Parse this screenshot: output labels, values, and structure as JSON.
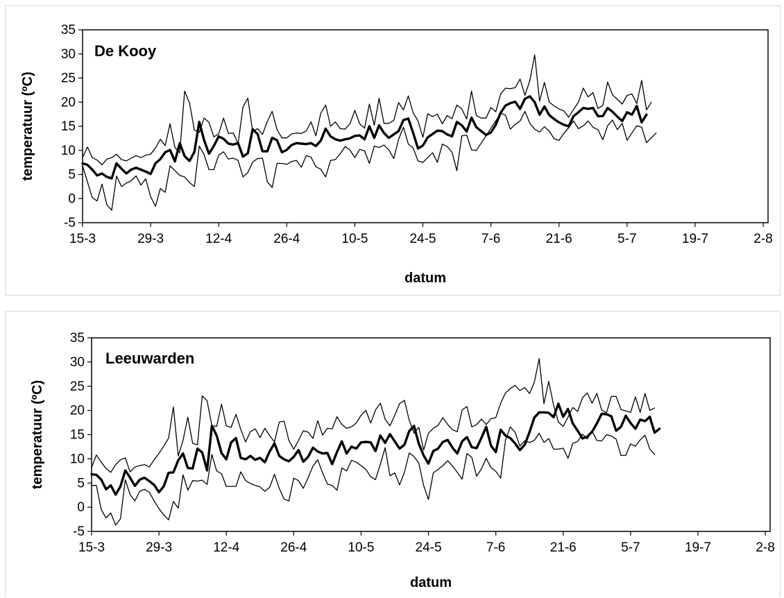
{
  "chart_data": [
    {
      "type": "line",
      "title": "De Kooy",
      "xlabel": "datum",
      "ylabel": "temperatuur (ºC)",
      "ylim": [
        -5,
        35
      ],
      "yticks": [
        35,
        30,
        25,
        20,
        15,
        10,
        5,
        0,
        -5
      ],
      "xlim": [
        "15-3",
        "3-8"
      ],
      "xticks": [
        "15-3",
        "29-3",
        "12-4",
        "26-4",
        "10-5",
        "24-5",
        "7-6",
        "21-6",
        "5-7",
        "19-7",
        "2-8"
      ],
      "grid": false,
      "legend": "none",
      "series": [
        {
          "role": "max",
          "stroke": "#000000",
          "width": 1.3,
          "values": [
            8.5,
            10.7,
            8.5,
            8,
            7,
            8.2,
            8.5,
            9.2,
            8.1,
            7.8,
            8.4,
            8.9,
            8.5,
            9,
            9.2,
            10.5,
            12.3,
            11,
            15.5,
            10.6,
            9.5,
            22.3,
            19.8,
            14.2,
            13.7,
            16.7,
            15.8,
            12.8,
            13.4,
            16.7,
            13.5,
            13.6,
            11.4,
            19,
            20.8,
            13.9,
            14.5,
            13.3,
            16,
            18.1,
            14.3,
            12.6,
            12.6,
            13.4,
            13.6,
            13.5,
            14,
            15.9,
            13,
            17.7,
            19.4,
            15,
            15.9,
            14.5,
            14.4,
            15.5,
            18.3,
            15.5,
            14.6,
            19.6,
            15.2,
            20.8,
            15.6,
            15.6,
            16.2,
            19.9,
            18.4,
            21.3,
            17.8,
            16.1,
            12.7,
            17.6,
            17,
            17.5,
            15.5,
            17.2,
            16.6,
            19.4,
            18.6,
            16.5,
            22.3,
            17.2,
            16.7,
            16.7,
            18.9,
            18,
            21.7,
            22.9,
            22.8,
            23,
            24.8,
            21.4,
            24.5,
            29.8,
            20.2,
            24.1,
            20,
            19.2,
            18.6,
            18.2,
            16.9,
            18.5,
            20,
            22.9,
            21.1,
            22,
            18.7,
            19.3,
            24.2,
            21.5,
            20.6,
            19.6,
            21.4,
            21.7,
            19.7,
            24.5,
            18.4,
            20
          ]
        },
        {
          "role": "mean",
          "stroke": "#000000",
          "width": 3.4,
          "values": [
            7.3,
            7,
            6,
            4.8,
            5.2,
            4.5,
            4.2,
            7.3,
            6.2,
            5.2,
            6,
            6.4,
            6,
            5.6,
            5.1,
            7.3,
            8.2,
            9.6,
            10.1,
            7.7,
            11.5,
            8.8,
            7.8,
            9.7,
            15.9,
            12.1,
            9.3,
            10.9,
            12.9,
            12.4,
            11.4,
            11.2,
            11.5,
            8.7,
            9.4,
            14.4,
            13.4,
            9.8,
            9.8,
            12.6,
            12.1,
            9.6,
            10.1,
            11.1,
            11.5,
            11.4,
            11.3,
            11.5,
            10.9,
            12,
            14.5,
            12.9,
            12.3,
            12,
            12.3,
            12.5,
            13,
            13.1,
            12.3,
            15,
            12.6,
            15.2,
            13.6,
            12.6,
            13.3,
            14,
            16.3,
            16.6,
            13.6,
            10.4,
            11,
            12.7,
            13.4,
            14.1,
            14,
            13.3,
            12.9,
            15.9,
            15.2,
            13.9,
            16.8,
            14.8,
            14,
            13.2,
            13.7,
            15.3,
            17.8,
            19.3,
            19.8,
            20.1,
            18.6,
            20.7,
            21.2,
            20,
            17.4,
            19.1,
            17.3,
            16.5,
            15.8,
            15.3,
            15,
            17.1,
            17.9,
            18.8,
            18.6,
            18.8,
            17.1,
            17.1,
            18.8,
            18,
            17,
            16.1,
            17.9,
            17.4,
            19.2,
            15.8,
            17.4
          ]
        },
        {
          "role": "min",
          "stroke": "#000000",
          "width": 1.3,
          "values": [
            6.8,
            3.5,
            0.2,
            -0.5,
            3,
            -1.3,
            -2.4,
            4.7,
            2.5,
            3.2,
            3.7,
            4.7,
            2.8,
            4.1,
            0.4,
            -1.6,
            2.1,
            1.3,
            6.8,
            5.8,
            4.8,
            4.5,
            3.3,
            2.5,
            10.9,
            9.1,
            6,
            6,
            9,
            9.7,
            8.2,
            8.4,
            7.9,
            4.5,
            5.4,
            7.6,
            8.3,
            8.4,
            3.5,
            2.3,
            7.3,
            7.3,
            7.1,
            7.7,
            7.9,
            6.5,
            8.9,
            8.6,
            6.6,
            6.1,
            4.5,
            7.9,
            8.1,
            9.3,
            10.8,
            10.1,
            8.5,
            10.2,
            9.9,
            7.3,
            10.9,
            10.6,
            11.1,
            10.1,
            8.3,
            12.3,
            14.8,
            11.3,
            10.5,
            7.8,
            7.5,
            8.5,
            9.5,
            7.5,
            11.3,
            10.8,
            9.6,
            5.8,
            13,
            13.2,
            10.1,
            10,
            11.5,
            13,
            14.6,
            16.1,
            17.7,
            17.3,
            14.4,
            15.4,
            16.1,
            18.1,
            15.6,
            14.4,
            13.8,
            14.9,
            14,
            12.4,
            12.1,
            13.5,
            14.7,
            16.1,
            14.5,
            15.1,
            16.1,
            14.8,
            14.3,
            12.2,
            15.1,
            16.3,
            14.3,
            15.6,
            12.1,
            13.6,
            15.1,
            14.8,
            11.6,
            12.6,
            13.6
          ]
        }
      ]
    },
    {
      "type": "line",
      "title": "Leeuwarden",
      "xlabel": "datum",
      "ylabel": "temperatuur (ºC)",
      "ylim": [
        -5,
        35
      ],
      "yticks": [
        35,
        30,
        25,
        20,
        15,
        10,
        5,
        0,
        -5
      ],
      "xlim": [
        "15-3",
        "3-8"
      ],
      "xticks": [
        "15-3",
        "29-3",
        "12-4",
        "26-4",
        "10-5",
        "24-5",
        "7-6",
        "21-6",
        "5-7",
        "19-7",
        "2-8"
      ],
      "grid": false,
      "legend": "none",
      "series": [
        {
          "role": "max",
          "stroke": "#000000",
          "width": 1.3,
          "values": [
            8.2,
            10.8,
            9.3,
            8,
            7.2,
            8.8,
            9.8,
            10.2,
            7.3,
            8.3,
            8.6,
            8.8,
            8.3,
            9.8,
            11.1,
            12.6,
            14.3,
            20.7,
            10.6,
            13.8,
            18.6,
            13.2,
            12.9,
            23,
            22,
            16.8,
            16.7,
            21.3,
            16.8,
            16.5,
            19.2,
            16.1,
            13.5,
            15.6,
            16.2,
            14.4,
            16.3,
            14.8,
            13.5,
            17.6,
            17.8,
            13.8,
            12,
            13.8,
            15.8,
            15.5,
            14.2,
            17.9,
            14.9,
            16.3,
            16.2,
            18.7,
            17.1,
            16.3,
            16.6,
            17.4,
            19,
            20,
            17.4,
            20.1,
            21.5,
            18.2,
            16.8,
            19,
            21.4,
            22.1,
            18,
            15.3,
            16.5,
            11.8,
            15.3,
            16.3,
            16.9,
            18.5,
            17.1,
            16,
            15.6,
            20.1,
            20.8,
            16.6,
            17.1,
            18.2,
            17.1,
            18.3,
            18.5,
            21.5,
            23.6,
            24.5,
            25.2,
            24.1,
            24.7,
            23.5,
            25.8,
            30.7,
            21.4,
            26,
            21.1,
            17.6,
            16.7,
            18.6,
            20.6,
            19.8,
            22.6,
            23.6,
            21.5,
            23.5,
            20.1,
            19.5,
            22.9,
            22.9,
            20.2,
            19.9,
            19.6,
            22.8,
            19.6,
            23.5,
            20,
            20.5
          ]
        },
        {
          "role": "mean",
          "stroke": "#000000",
          "width": 3.4,
          "values": [
            6.8,
            6.7,
            5.7,
            3.7,
            4.5,
            2.6,
            4.3,
            7.6,
            6.1,
            4.4,
            5.7,
            6.1,
            5.4,
            4.6,
            3.1,
            4.3,
            7.1,
            7.2,
            9.7,
            11.1,
            8.1,
            8,
            12.1,
            11.3,
            7.6,
            16.8,
            14.8,
            11.2,
            9.9,
            13.4,
            14.3,
            10.2,
            9.9,
            10.6,
            9.8,
            10.2,
            9.3,
            11.5,
            13.2,
            10.6,
            9.9,
            9.5,
            10.4,
            11.8,
            9.4,
            10.4,
            12.3,
            11.5,
            11.1,
            11.2,
            8.9,
            11.4,
            13.6,
            11.1,
            12.5,
            12.1,
            13.4,
            13.5,
            13.4,
            11.6,
            14.8,
            13.3,
            15.1,
            13.6,
            12.1,
            12.9,
            15.7,
            16.8,
            13.1,
            10.7,
            9,
            11.6,
            12.1,
            13.5,
            13.9,
            12.3,
            11.1,
            13.6,
            14.5,
            12.4,
            12.2,
            14.3,
            16.6,
            12.7,
            11.4,
            16,
            14.8,
            14.3,
            13.2,
            11.8,
            12.9,
            15.5,
            18.5,
            19.6,
            19.6,
            19.5,
            18.6,
            21.4,
            18.7,
            20.3,
            17.3,
            15.8,
            14.2,
            14.6,
            15.6,
            17.3,
            19.3,
            19.2,
            18.8,
            15.8,
            16.6,
            18.9,
            17.4,
            16.2,
            18.1,
            17.8,
            18.7,
            15.4,
            16.2
          ]
        },
        {
          "role": "min",
          "stroke": "#000000",
          "width": 1.3,
          "values": [
            4.5,
            4.5,
            -0.5,
            -2.2,
            -1.2,
            -3.7,
            -2.4,
            5.7,
            2.6,
            1.3,
            3.3,
            3.7,
            3.1,
            1.3,
            -0.3,
            -1.6,
            -2.6,
            1.2,
            -0.2,
            6.7,
            3.5,
            5.5,
            5.4,
            5.6,
            4.7,
            10.9,
            7.5,
            6.9,
            4.3,
            4.3,
            4.3,
            7.3,
            5.5,
            4.9,
            4.5,
            4.2,
            3.3,
            4.1,
            6.8,
            3.9,
            1.7,
            1.3,
            6,
            5.5,
            3.9,
            6.1,
            8.5,
            9.8,
            7.1,
            4.8,
            4.5,
            3.5,
            8.1,
            7.5,
            9.7,
            9.3,
            8.6,
            7.8,
            6.3,
            5.7,
            8.9,
            12.3,
            6.5,
            7.1,
            4.6,
            7.2,
            11.2,
            10.5,
            9.1,
            4.5,
            1.6,
            7.1,
            7.8,
            8.6,
            9.6,
            8.5,
            7.2,
            5.8,
            11.1,
            10.3,
            6.4,
            7.9,
            10.1,
            8.2,
            7.4,
            6,
            13.8,
            16.6,
            15.5,
            12.6,
            13.7,
            13.4,
            13.8,
            15.3,
            13.4,
            14.2,
            12,
            12,
            12.2,
            10.1,
            13.2,
            13.6,
            15.1,
            14.1,
            15.7,
            13.8,
            13.7,
            15,
            14.7,
            14.1,
            10.7,
            10.7,
            13.1,
            12.6,
            13.9,
            14.9,
            12,
            10.9
          ]
        }
      ]
    }
  ]
}
